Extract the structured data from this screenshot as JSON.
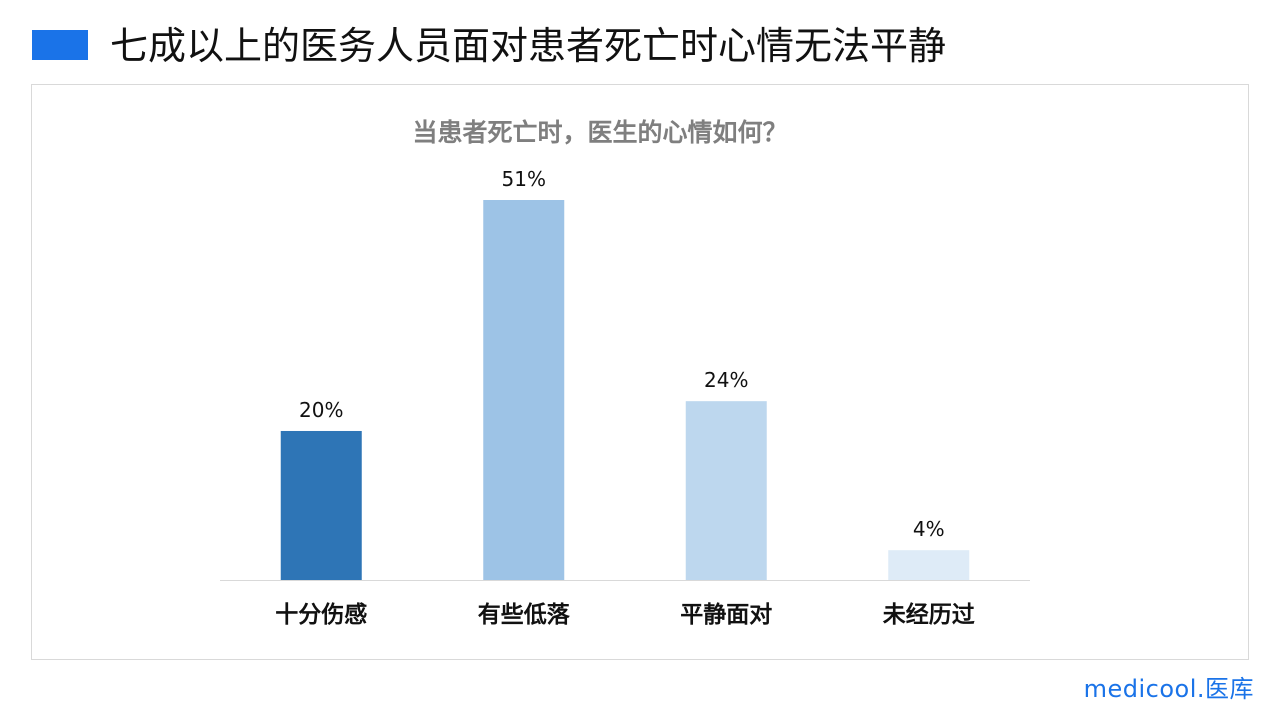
{
  "page": {
    "title": "七成以上的医务人员面对患者死亡时心情无法平静",
    "brand": "medicool.医库"
  },
  "colors": {
    "marker": "#1a73e8",
    "brand": "#1a73e8"
  },
  "chart_data": {
    "type": "bar",
    "title": "当患者死亡时，医生的心情如何？",
    "categories": [
      "十分伤感",
      "有些低落",
      "平静面对",
      "未经历过"
    ],
    "values": [
      20,
      51,
      24,
      4
    ],
    "value_labels": [
      "20%",
      "51%",
      "24%",
      "4%"
    ],
    "bar_colors": [
      "#2e75b6",
      "#9dc3e6",
      "#bdd7ee",
      "#deebf7"
    ],
    "ylim": [
      0,
      51
    ],
    "grid": false
  }
}
